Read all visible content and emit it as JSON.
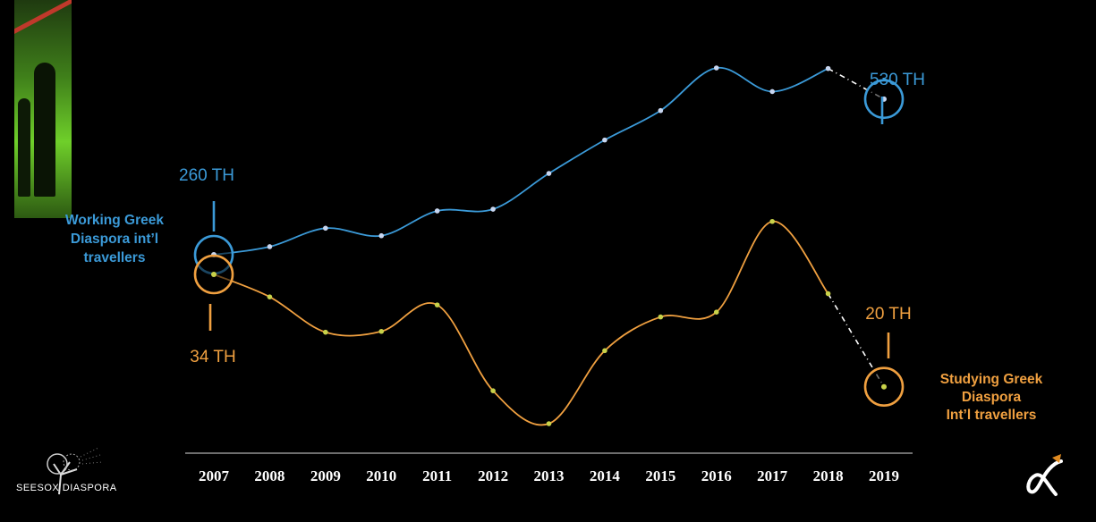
{
  "brand": {
    "name": "SEESOX DIASPORA"
  },
  "logo": {
    "icon": "alpha-arrow-icon"
  },
  "chart_data": {
    "type": "line",
    "x": [
      2007,
      2008,
      2009,
      2010,
      2011,
      2012,
      2013,
      2014,
      2015,
      2016,
      2017,
      2018,
      2019
    ],
    "xlabel": "",
    "ylabel": "",
    "grid": false,
    "series": [
      {
        "name": "Working Greek Diaspora int'l travellers",
        "label_lines": [
          "Working Greek",
          "Diaspora int’l",
          "travellers"
        ],
        "color": "#3b9ad8",
        "values": [
          260,
          274,
          306,
          293,
          336,
          339,
          401,
          459,
          510,
          584,
          543,
          583,
          530
        ],
        "start_label": "260 TH",
        "end_label": "530 TH",
        "last_segment_projected": true
      },
      {
        "name": "Studying Greek Diaspora Int'l travellers",
        "label_lines": [
          "Studying Greek",
          "Diaspora",
          "Int’l travellers"
        ],
        "color": "#f0a040",
        "values": [
          34,
          31.2,
          26.8,
          26.9,
          30.2,
          19.5,
          15.4,
          24.5,
          28.7,
          29.3,
          40.6,
          31.6,
          20
        ],
        "start_label": "34 TH",
        "end_label": "20 TH",
        "last_segment_projected": true
      }
    ]
  }
}
